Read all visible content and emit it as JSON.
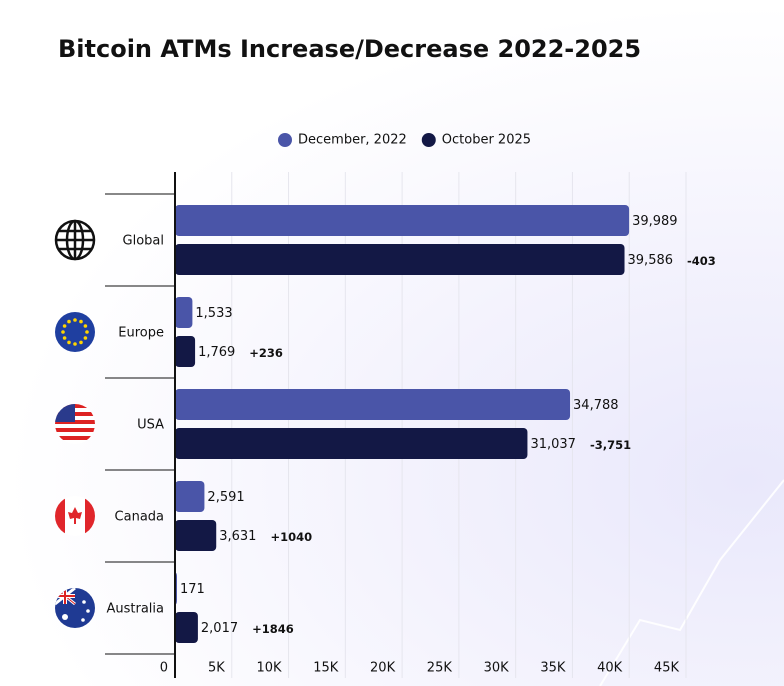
{
  "chart_data": {
    "type": "hbar",
    "title": "Bitcoin ATMs Increase/Decrease 2022-2025",
    "categories": [
      "Global",
      "Europe",
      "USA",
      "Canada",
      "Australia"
    ],
    "series": [
      {
        "name": "December, 2022",
        "color": "#4a55a8",
        "values": [
          39989,
          1533,
          34788,
          2591,
          171
        ],
        "value_labels": [
          "39,989",
          "1,533",
          "34,788",
          "2,591",
          "171"
        ]
      },
      {
        "name": "October 2025",
        "color": "#131845",
        "values": [
          39586,
          1769,
          31037,
          3631,
          2017
        ],
        "value_labels": [
          "39,586",
          "1,769",
          "31,037",
          "3,631",
          "2,017"
        ]
      }
    ],
    "annotations": [
      {
        "text": "-403",
        "color": "#e0262b"
      },
      {
        "text": "+236",
        "color": "#5cb85c"
      },
      {
        "text": "-3,751",
        "color": "#e0262b"
      },
      {
        "text": "+1040",
        "color": "#5cb85c"
      },
      {
        "text": "+1846",
        "color": "#5cb85c"
      }
    ],
    "xlim": [
      0,
      45000
    ],
    "xticks": [
      0,
      {
        "value": 5000,
        "label": "5K"
      },
      {
        "value": 10000,
        "label": "10K"
      },
      {
        "value": 15000,
        "label": "15K"
      },
      {
        "value": 20000,
        "label": "20K"
      },
      {
        "value": 25000,
        "label": "25K"
      },
      {
        "value": 30000,
        "label": "30K"
      },
      {
        "value": 35000,
        "label": "35K"
      },
      {
        "value": 40000,
        "label": "40K"
      },
      {
        "value": 45000,
        "label": "45K"
      }
    ],
    "grid": true,
    "legend": "top"
  }
}
